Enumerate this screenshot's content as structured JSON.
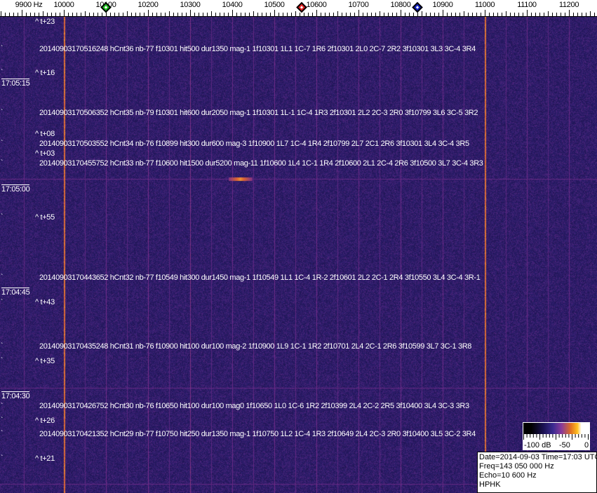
{
  "chart_data": {
    "type": "heatmap",
    "subtype": "spectrogram-waterfall",
    "x_axis": {
      "unit": "Hz",
      "ticks": [
        "9900 Hz",
        "10000",
        "10100",
        "10200",
        "10300",
        "10400",
        "10500",
        "10600",
        "10700",
        "10800",
        "10900",
        "11000",
        "11100",
        "11200"
      ],
      "range": [
        9900,
        11250
      ]
    },
    "markers": [
      {
        "color": "#20c020",
        "freq": 10100
      },
      {
        "color": "#e02020",
        "freq": 10565
      },
      {
        "color": "#1020c0",
        "freq": 10840
      }
    ],
    "time_labels": [
      "17:05:15",
      "17:05:00",
      "17:04:45",
      "17:04:30"
    ],
    "offset_labels": [
      "^ t+23",
      "^ t+16",
      "^ t+08",
      "^ t+03",
      "^ t+55",
      "^ t+43",
      "^ t+35",
      "^ t+26",
      "^ t+21"
    ],
    "detections": [
      "20140903170516248 hCnt36 nb-77 f10301 hit500 dur1350 mag-1 1f10301 1L1 1C-7 1R6 2f10301 2L0 2C-7 2R2 3f10301 3L3 3C-4 3R4",
      "20140903170506352 hCnt35 nb-79 f10301 hit600 dur2050 mag-1 1f10301 1L-1 1C-4 1R3 2f10301 2L2 2C-3 2R0 3f10799 3L6 3C-5 3R2",
      "20140903170503552 hCnt34 nb-76 f10899 hit300 dur600 mag-3 1f10900 1L7 1C-4 1R4 2f10799 2L7 2C1 2R6 3f10301 3L4 3C-4 3R5",
      "20140903170455752 hCnt33 nb-77 f10600 hit1500 dur5200 mag-11 1f10600 1L4 1C-1 1R4 2f10600 2L1 2C-4 2R6 3f10500 3L7 3C-4 3R3",
      "20140903170443652 hCnt32 nb-77 f10549 hit300 dur1450 mag-1 1f10549 1L1 1C-4 1R-2 2f10601 2L2 2C-1 2R4 3f10550 3L4 3C-4 3R-1",
      "20140903170435248 hCnt31 nb-76 f10900 hit100 dur100 mag-2 1f10900 1L9 1C-1 1R2 2f10701 2L4 2C-1 2R6 3f10599 3L7 3C-1 3R8",
      "20140903170426752 hCnt30 nb-76 f10650 hit100 dur100 mag0 1f10650 1L0 1C-6 1R2 2f10399 2L4 2C-2 2R5 3f10400 3L4 3C-3 3R3",
      "20140903170421352 hCnt29 nb-77 f10750 hit250 dur1350 mag-1 1f10750 1L2 1C-4 1R3 2f10649 2L4 2C-3 2R0 3f10400 3L5 3C-2 3R4"
    ],
    "colorbar": {
      "labels": [
        "-100 dB",
        "-50",
        "0"
      ],
      "range_db": [
        -100,
        0
      ]
    }
  },
  "info": {
    "line1": "Date=2014-09-03 Time=17:03 UTC",
    "line2": "Freq=143 050 000 Hz",
    "line3": "Echo=10 600 Hz",
    "line4": "HPHK"
  }
}
